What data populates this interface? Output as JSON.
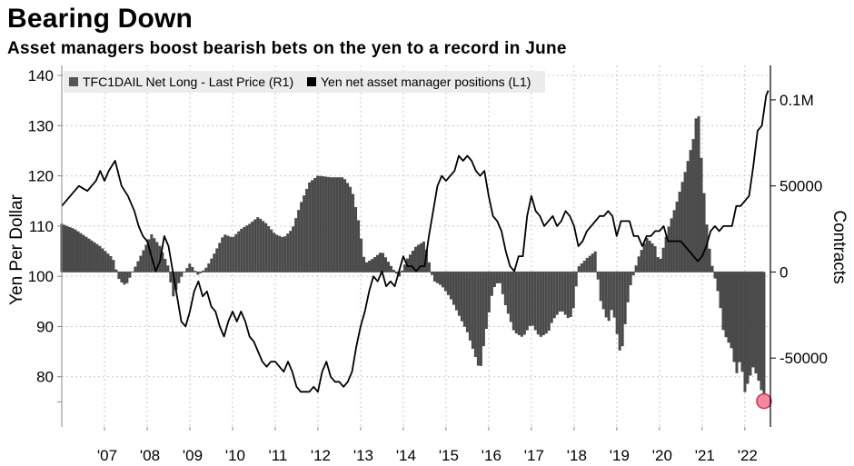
{
  "title": "Bearing Down",
  "subtitle": "Asset managers boost bearish bets on the yen to a record in June",
  "colors": {
    "bars": "#4a4a4a",
    "line": "#000000",
    "grid": "#c8c8c8",
    "marker_fill": "#f08aa0",
    "marker_stroke": "#d0314f",
    "legend_bg": "#ececec"
  },
  "chart_data": {
    "type": "bar+line",
    "title": "Bearing Down",
    "subtitle": "Asset managers boost bearish bets on the yen to a record in June",
    "legend": [
      {
        "label": "TFC1DAIL Net Long - Last Price (R1)",
        "swatch": "#555555"
      },
      {
        "label": "Yen net asset manager positions (L1)",
        "swatch": "#000000"
      }
    ],
    "left_axis": {
      "label": "Yen Per Dollar",
      "ticks": [
        80,
        90,
        100,
        110,
        120,
        130,
        140
      ],
      "range": [
        70,
        142
      ]
    },
    "right_axis": {
      "label": "Contracts",
      "ticks": [
        -50000,
        0,
        50000,
        100000
      ],
      "tick_labels": [
        "-50000",
        "0",
        "50000",
        "0.1M"
      ],
      "range": [
        -90000,
        120000
      ]
    },
    "x_axis": {
      "labels": [
        "'07",
        "'08",
        "'09",
        "'10",
        "'11",
        "'12",
        "'13",
        "'14",
        "'15",
        "'16",
        "'17",
        "'18",
        "'19",
        "'20",
        "'21",
        "'22"
      ],
      "range": [
        2006.0,
        2022.6
      ]
    },
    "series": [
      {
        "name": "TFC1DAIL Net Long - Last Price (R1)",
        "kind": "bar",
        "axis": "right",
        "points": [
          [
            2006.0,
            28000
          ],
          [
            2006.3,
            25000
          ],
          [
            2006.6,
            20000
          ],
          [
            2006.9,
            15000
          ],
          [
            2007.2,
            8000
          ],
          [
            2007.35,
            -5000
          ],
          [
            2007.5,
            -8000
          ],
          [
            2007.7,
            2000
          ],
          [
            2007.9,
            12000
          ],
          [
            2008.1,
            22000
          ],
          [
            2008.3,
            15000
          ],
          [
            2008.5,
            3000
          ],
          [
            2008.6,
            -15000
          ],
          [
            2008.8,
            -3000
          ],
          [
            2009.0,
            5000
          ],
          [
            2009.2,
            -2000
          ],
          [
            2009.4,
            3000
          ],
          [
            2009.6,
            12000
          ],
          [
            2009.8,
            22000
          ],
          [
            2010.0,
            20000
          ],
          [
            2010.2,
            25000
          ],
          [
            2010.4,
            28000
          ],
          [
            2010.6,
            32000
          ],
          [
            2010.8,
            28000
          ],
          [
            2011.0,
            22000
          ],
          [
            2011.2,
            20000
          ],
          [
            2011.4,
            25000
          ],
          [
            2011.6,
            40000
          ],
          [
            2011.8,
            52000
          ],
          [
            2012.0,
            56000
          ],
          [
            2012.3,
            55000
          ],
          [
            2012.6,
            55000
          ],
          [
            2012.8,
            48000
          ],
          [
            2012.95,
            30000
          ],
          [
            2013.1,
            5000
          ],
          [
            2013.3,
            8000
          ],
          [
            2013.5,
            12000
          ],
          [
            2013.7,
            4000
          ],
          [
            2013.9,
            -3000
          ],
          [
            2014.1,
            8000
          ],
          [
            2014.3,
            15000
          ],
          [
            2014.5,
            18000
          ],
          [
            2014.7,
            -5000
          ],
          [
            2014.9,
            -8000
          ],
          [
            2015.1,
            -15000
          ],
          [
            2015.3,
            -25000
          ],
          [
            2015.5,
            -35000
          ],
          [
            2015.7,
            -50000
          ],
          [
            2015.8,
            -58000
          ],
          [
            2015.9,
            -40000
          ],
          [
            2016.1,
            -10000
          ],
          [
            2016.25,
            -5000
          ],
          [
            2016.4,
            -20000
          ],
          [
            2016.6,
            -35000
          ],
          [
            2016.8,
            -38000
          ],
          [
            2017.0,
            -30000
          ],
          [
            2017.2,
            -38000
          ],
          [
            2017.4,
            -35000
          ],
          [
            2017.5,
            -28000
          ],
          [
            2017.7,
            -22000
          ],
          [
            2017.9,
            -28000
          ],
          [
            2018.0,
            -20000
          ],
          [
            2018.1,
            3000
          ],
          [
            2018.3,
            8000
          ],
          [
            2018.5,
            12000
          ],
          [
            2018.6,
            -15000
          ],
          [
            2018.8,
            -30000
          ],
          [
            2018.9,
            -20000
          ],
          [
            2019.0,
            -35000
          ],
          [
            2019.1,
            -50000
          ],
          [
            2019.3,
            -10000
          ],
          [
            2019.5,
            8000
          ],
          [
            2019.7,
            20000
          ],
          [
            2019.9,
            15000
          ],
          [
            2020.0,
            5000
          ],
          [
            2020.2,
            25000
          ],
          [
            2020.4,
            40000
          ],
          [
            2020.6,
            58000
          ],
          [
            2020.8,
            78000
          ],
          [
            2020.9,
            98000
          ],
          [
            2021.0,
            60000
          ],
          [
            2021.1,
            30000
          ],
          [
            2021.2,
            8000
          ],
          [
            2021.4,
            -15000
          ],
          [
            2021.5,
            -35000
          ],
          [
            2021.7,
            -45000
          ],
          [
            2021.8,
            -60000
          ],
          [
            2021.9,
            -50000
          ],
          [
            2022.0,
            -70000
          ],
          [
            2022.2,
            -55000
          ],
          [
            2022.35,
            -65000
          ],
          [
            2022.45,
            -75000
          ]
        ]
      },
      {
        "name": "Yen net asset manager positions (L1)",
        "kind": "line",
        "axis": "left",
        "points": [
          [
            2006.0,
            114
          ],
          [
            2006.2,
            116
          ],
          [
            2006.4,
            118
          ],
          [
            2006.6,
            117
          ],
          [
            2006.8,
            119
          ],
          [
            2006.9,
            121
          ],
          [
            2007.0,
            119
          ],
          [
            2007.1,
            121
          ],
          [
            2007.25,
            123
          ],
          [
            2007.4,
            118
          ],
          [
            2007.55,
            116
          ],
          [
            2007.7,
            113
          ],
          [
            2007.8,
            110
          ],
          [
            2007.9,
            108
          ],
          [
            2008.0,
            107
          ],
          [
            2008.1,
            104
          ],
          [
            2008.2,
            101
          ],
          [
            2008.3,
            103
          ],
          [
            2008.4,
            108
          ],
          [
            2008.5,
            106
          ],
          [
            2008.6,
            101
          ],
          [
            2008.7,
            96
          ],
          [
            2008.8,
            91
          ],
          [
            2008.9,
            90
          ],
          [
            2009.0,
            93
          ],
          [
            2009.1,
            97
          ],
          [
            2009.2,
            99
          ],
          [
            2009.3,
            96
          ],
          [
            2009.4,
            97
          ],
          [
            2009.5,
            94
          ],
          [
            2009.6,
            93
          ],
          [
            2009.7,
            90
          ],
          [
            2009.8,
            88
          ],
          [
            2009.9,
            91
          ],
          [
            2010.0,
            93
          ],
          [
            2010.1,
            91
          ],
          [
            2010.2,
            93
          ],
          [
            2010.3,
            91
          ],
          [
            2010.4,
            88
          ],
          [
            2010.5,
            87
          ],
          [
            2010.6,
            85
          ],
          [
            2010.7,
            83
          ],
          [
            2010.8,
            82
          ],
          [
            2010.9,
            83
          ],
          [
            2011.0,
            83
          ],
          [
            2011.1,
            82
          ],
          [
            2011.2,
            81
          ],
          [
            2011.3,
            83
          ],
          [
            2011.4,
            81
          ],
          [
            2011.5,
            78
          ],
          [
            2011.6,
            77
          ],
          [
            2011.7,
            77
          ],
          [
            2011.8,
            77
          ],
          [
            2011.9,
            78
          ],
          [
            2012.0,
            77
          ],
          [
            2012.1,
            81
          ],
          [
            2012.2,
            83
          ],
          [
            2012.3,
            80
          ],
          [
            2012.4,
            79
          ],
          [
            2012.5,
            79
          ],
          [
            2012.6,
            78
          ],
          [
            2012.7,
            79
          ],
          [
            2012.8,
            81
          ],
          [
            2012.9,
            86
          ],
          [
            2013.0,
            90
          ],
          [
            2013.1,
            93
          ],
          [
            2013.2,
            97
          ],
          [
            2013.3,
            100
          ],
          [
            2013.4,
            99
          ],
          [
            2013.5,
            101
          ],
          [
            2013.6,
            98
          ],
          [
            2013.7,
            99
          ],
          [
            2013.8,
            98
          ],
          [
            2013.9,
            101
          ],
          [
            2014.0,
            104
          ],
          [
            2014.1,
            102
          ],
          [
            2014.2,
            102
          ],
          [
            2014.3,
            101
          ],
          [
            2014.4,
            102
          ],
          [
            2014.5,
            102
          ],
          [
            2014.6,
            108
          ],
          [
            2014.7,
            113
          ],
          [
            2014.8,
            118
          ],
          [
            2014.9,
            120
          ],
          [
            2015.0,
            119
          ],
          [
            2015.1,
            120
          ],
          [
            2015.2,
            121
          ],
          [
            2015.3,
            124
          ],
          [
            2015.4,
            123
          ],
          [
            2015.5,
            124
          ],
          [
            2015.6,
            123
          ],
          [
            2015.7,
            121
          ],
          [
            2015.8,
            120
          ],
          [
            2015.9,
            121
          ],
          [
            2016.0,
            116
          ],
          [
            2016.1,
            112
          ],
          [
            2016.2,
            111
          ],
          [
            2016.3,
            109
          ],
          [
            2016.4,
            105
          ],
          [
            2016.5,
            102
          ],
          [
            2016.6,
            101
          ],
          [
            2016.7,
            104
          ],
          [
            2016.8,
            104
          ],
          [
            2016.9,
            112
          ],
          [
            2017.0,
            116
          ],
          [
            2017.1,
            113
          ],
          [
            2017.2,
            112
          ],
          [
            2017.3,
            110
          ],
          [
            2017.4,
            111
          ],
          [
            2017.5,
            112
          ],
          [
            2017.6,
            110
          ],
          [
            2017.7,
            111
          ],
          [
            2017.8,
            113
          ],
          [
            2017.9,
            112
          ],
          [
            2018.0,
            110
          ],
          [
            2018.1,
            106
          ],
          [
            2018.2,
            107
          ],
          [
            2018.3,
            109
          ],
          [
            2018.4,
            110
          ],
          [
            2018.5,
            111
          ],
          [
            2018.6,
            112
          ],
          [
            2018.7,
            112
          ],
          [
            2018.8,
            113
          ],
          [
            2018.9,
            112
          ],
          [
            2019.0,
            108
          ],
          [
            2019.1,
            111
          ],
          [
            2019.2,
            111
          ],
          [
            2019.3,
            111
          ],
          [
            2019.4,
            108
          ],
          [
            2019.5,
            108
          ],
          [
            2019.6,
            106
          ],
          [
            2019.7,
            108
          ],
          [
            2019.8,
            108
          ],
          [
            2019.9,
            109
          ],
          [
            2020.0,
            109
          ],
          [
            2020.1,
            110
          ],
          [
            2020.2,
            107
          ],
          [
            2020.3,
            107
          ],
          [
            2020.4,
            107
          ],
          [
            2020.5,
            107
          ],
          [
            2020.6,
            106
          ],
          [
            2020.7,
            105
          ],
          [
            2020.8,
            104
          ],
          [
            2020.9,
            103
          ],
          [
            2021.0,
            104
          ],
          [
            2021.1,
            106
          ],
          [
            2021.2,
            109
          ],
          [
            2021.3,
            110
          ],
          [
            2021.4,
            109
          ],
          [
            2021.5,
            110
          ],
          [
            2021.6,
            110
          ],
          [
            2021.7,
            110
          ],
          [
            2021.8,
            114
          ],
          [
            2021.9,
            114
          ],
          [
            2022.0,
            115
          ],
          [
            2022.1,
            116
          ],
          [
            2022.2,
            122
          ],
          [
            2022.3,
            129
          ],
          [
            2022.4,
            130
          ],
          [
            2022.5,
            136
          ],
          [
            2022.55,
            137
          ]
        ]
      }
    ],
    "annotations": [
      {
        "type": "highlight-marker",
        "series": "TFC1DAIL Net Long - Last Price (R1)",
        "x": 2022.45,
        "value": -75000
      }
    ]
  }
}
